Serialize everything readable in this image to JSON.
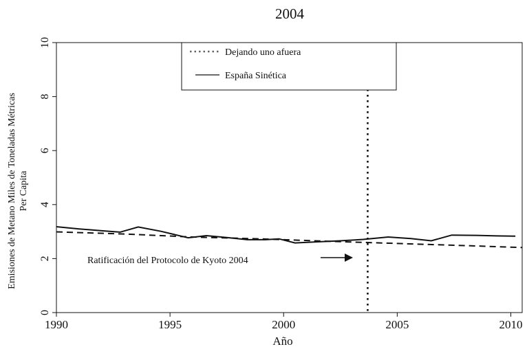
{
  "chart_data": {
    "type": "line",
    "title": "2004",
    "xlabel": "Año",
    "ylabel": "Emisiones de Metano Miles de Toneladas Métricas",
    "ylabel2": "Per Capita",
    "xlim": [
      1990,
      2010.5
    ],
    "ylim": [
      0,
      10
    ],
    "xticks": [
      1990,
      1995,
      2000,
      2005,
      2010
    ],
    "yticks": [
      0,
      2,
      4,
      6,
      8,
      10
    ],
    "grid": false,
    "legend_position": "top-center",
    "series": [
      {
        "name": "España Sinética",
        "style": "solid",
        "x": [
          1990,
          1991,
          1992,
          1992.8,
          1993.6,
          1994.6,
          1995.8,
          1996.6,
          1997.5,
          1998.4,
          1999.2,
          1999.8,
          2000.5,
          2001.5,
          2002.5,
          2003.5,
          2004.6,
          2005.6,
          2006.5,
          2007.4,
          2008.5,
          2009.4,
          2010.2
        ],
        "values": [
          3.18,
          3.1,
          3.03,
          2.98,
          3.17,
          3.01,
          2.77,
          2.85,
          2.78,
          2.7,
          2.7,
          2.73,
          2.58,
          2.62,
          2.66,
          2.71,
          2.8,
          2.74,
          2.66,
          2.87,
          2.86,
          2.84,
          2.83
        ]
      },
      {
        "name": "Dejando uno afuera",
        "style": "dashed",
        "x": [
          1990,
          1993,
          1996,
          1999,
          2002,
          2005,
          2008,
          2010.5
        ],
        "values": [
          2.99,
          2.91,
          2.8,
          2.73,
          2.64,
          2.56,
          2.48,
          2.41
        ]
      }
    ],
    "vertical_line": {
      "x": 2003.7,
      "style": "dotted"
    },
    "annotation": {
      "text": "Ratificación del Protocolo de Kyoto 2004"
    },
    "colors": {
      "line": "#111111",
      "axis": "#111111",
      "legend_dotted": "#666666"
    }
  }
}
